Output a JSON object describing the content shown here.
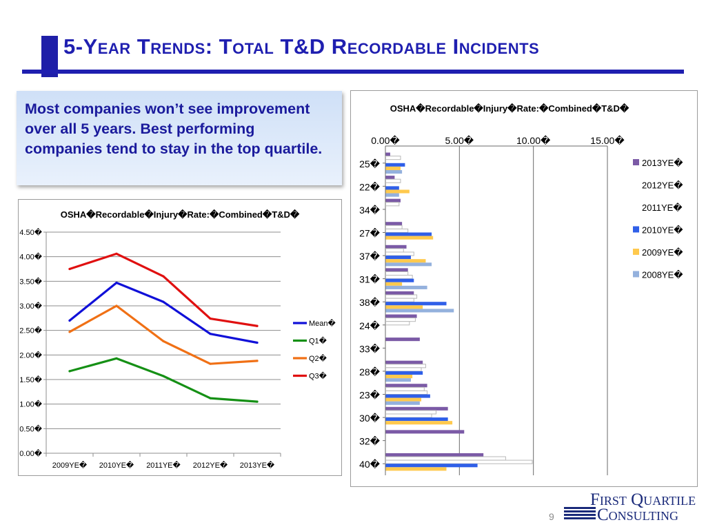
{
  "slide": {
    "title": "5-Year Trends: Total T&D Recordable Incidents",
    "callout": "Most companies won’t see improvement over all 5 years.  Best performing companies tend to stay in the top quartile.",
    "page_number": "9",
    "logo": {
      "line1": "First Quartile",
      "line2": "Consulting"
    },
    "colors": {
      "title": "#1f1fb0",
      "callout_text": "#1a1a9c"
    }
  },
  "chart_data": [
    {
      "type": "line",
      "title": "OSHA�Recordable�Injury�Rate:�Combined�T&D�",
      "categories": [
        "2009YE�",
        "2010YE�",
        "2011YE�",
        "2012YE�",
        "2013YE�"
      ],
      "y_ticks": [
        "0.00�",
        "0.50�",
        "1.00�",
        "1.50�",
        "2.00�",
        "2.50�",
        "3.00�",
        "3.50�",
        "4.00�",
        "4.50�"
      ],
      "ylim": [
        0,
        4.5
      ],
      "grid": true,
      "legend": "right",
      "series": [
        {
          "name": "Mean�",
          "color": "#1010d8",
          "values": [
            2.7,
            3.47,
            3.08,
            2.43,
            2.25
          ]
        },
        {
          "name": "Q1�",
          "color": "#159015",
          "values": [
            1.67,
            1.93,
            1.57,
            1.12,
            1.05
          ]
        },
        {
          "name": "Q2�",
          "color": "#f07015",
          "values": [
            2.47,
            3.0,
            2.28,
            1.82,
            1.88
          ]
        },
        {
          "name": "Q3�",
          "color": "#e01010",
          "values": [
            3.75,
            4.06,
            3.6,
            2.74,
            2.59
          ]
        }
      ]
    },
    {
      "type": "bar",
      "orientation": "horizontal",
      "title": "OSHA�Recordable�Injury�Rate:�Combined�T&D�",
      "categories": [
        "25�",
        "22�",
        "34�",
        "27�",
        "37�",
        "31�",
        "38�",
        "24�",
        "33�",
        "28�",
        "23�",
        "30�",
        "32�",
        "40�"
      ],
      "x_ticks": [
        "0.00�",
        "5.00�",
        "10.00�",
        "15.00�"
      ],
      "xlim": [
        0,
        15
      ],
      "grid": true,
      "legend": "right",
      "series": [
        {
          "name": "2013YE�",
          "color": "#7b5aa6",
          "values": [
            0.3,
            0.6,
            1.0,
            1.1,
            1.4,
            1.5,
            1.9,
            2.1,
            2.3,
            2.5,
            2.8,
            4.2,
            5.3,
            6.6
          ]
        },
        {
          "name": "2012YE�",
          "color": "#ffffff",
          "values": [
            1.0,
            1.0,
            0.9,
            1.1,
            1.2,
            1.5,
            2.1,
            2.0,
            0,
            2.7,
            2.6,
            3.4,
            0,
            8.1
          ]
        },
        {
          "name": "2011YE�",
          "color": "#ffffff",
          "values": [
            0,
            0,
            0,
            1.5,
            1.9,
            1.8,
            1.9,
            1.6,
            0,
            2.4,
            2.8,
            3.1,
            0,
            9.9
          ]
        },
        {
          "name": "2010YE�",
          "color": "#2f5fe8",
          "values": [
            1.3,
            0.9,
            0,
            3.1,
            1.7,
            1.9,
            4.1,
            0,
            0,
            2.5,
            3.0,
            4.2,
            0,
            6.2
          ]
        },
        {
          "name": "2009YE�",
          "color": "#ffc94d",
          "values": [
            1.0,
            1.6,
            0,
            3.2,
            2.7,
            1.1,
            2.5,
            0,
            0,
            1.8,
            2.4,
            4.5,
            0,
            4.1
          ]
        },
        {
          "name": "2008YE�",
          "color": "#94b1dd",
          "values": [
            1.1,
            0.9,
            0,
            0,
            3.1,
            2.8,
            4.6,
            0,
            0,
            1.7,
            2.3,
            0,
            0,
            0
          ]
        }
      ]
    }
  ]
}
